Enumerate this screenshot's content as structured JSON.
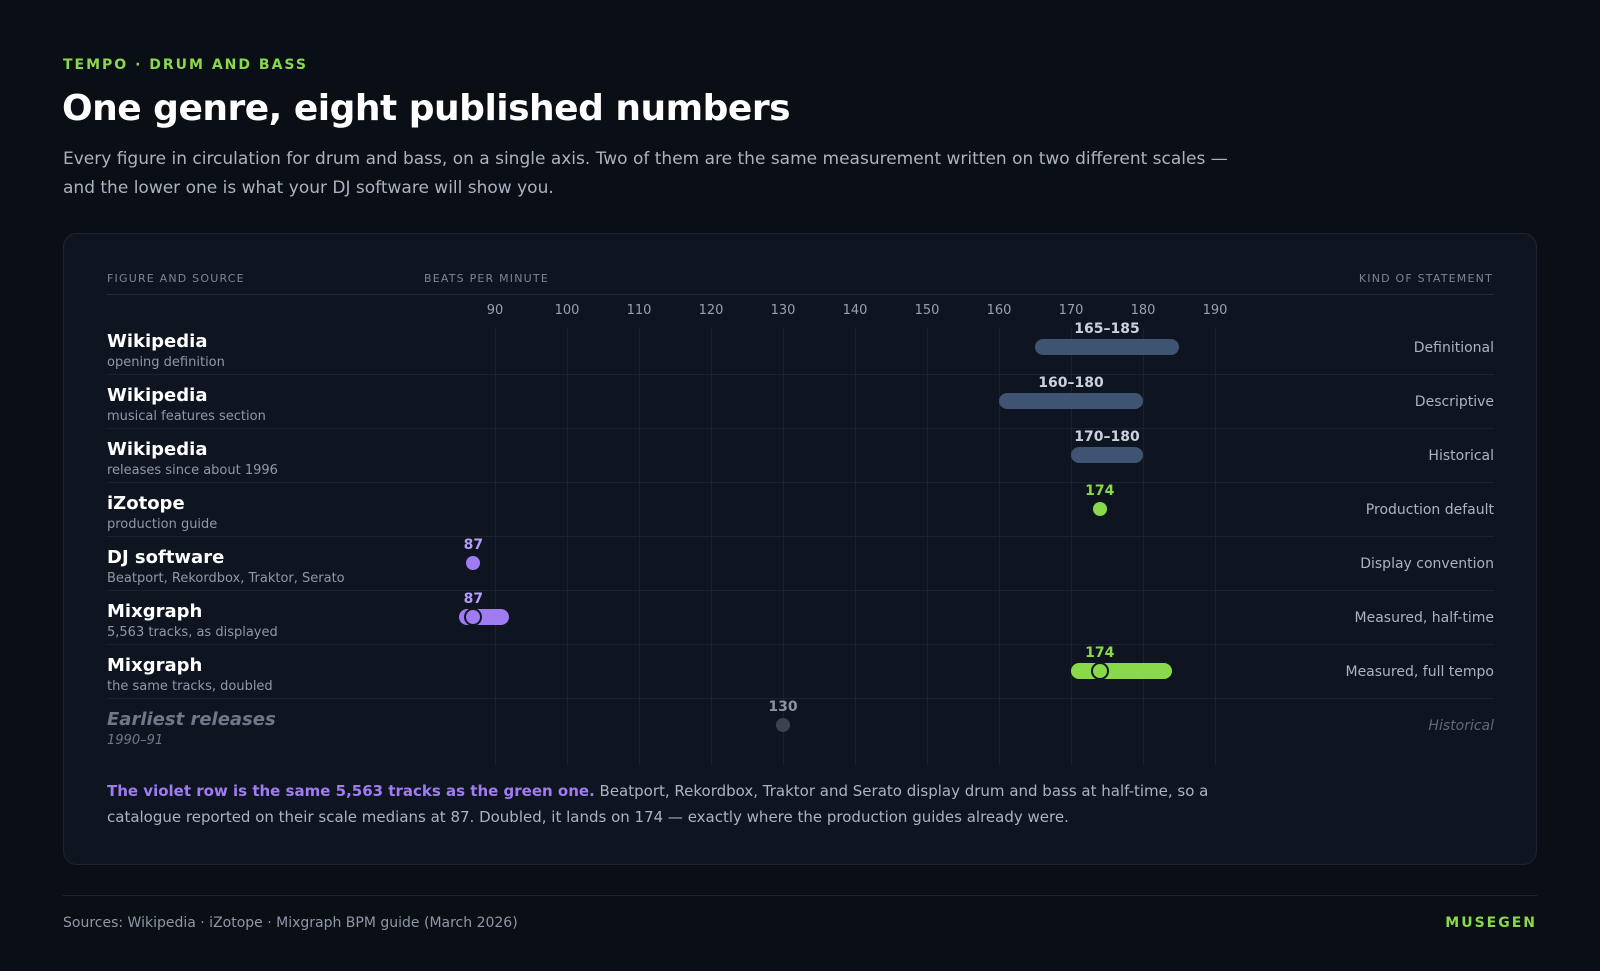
{
  "header": {
    "eyebrow": "TEMPO · DRUM AND BASS",
    "title": "One genre, eight published numbers",
    "subtitle": "Every figure in circulation for drum and bass, on a single axis. Two of them are the same measurement written on two different scales — and the lower one is what your DJ software will show you."
  },
  "columns": {
    "source": "FIGURE AND SOURCE",
    "axis": "BEATS PER MINUTE",
    "kind": "KIND OF STATEMENT"
  },
  "colors": {
    "range": "#3e5472",
    "green": "#8ad94a",
    "violet": "#a07cf3",
    "muted": "#3a4352"
  },
  "chart_data": {
    "type": "scatter",
    "x_unit": "BPM",
    "xlim": [
      85,
      195
    ],
    "ticks": [
      90,
      100,
      110,
      120,
      130,
      140,
      150,
      160,
      170,
      180,
      190
    ],
    "rows": [
      {
        "source": "Wikipedia",
        "detail": "opening definition",
        "kind": "Definitional",
        "label": "165–185",
        "min": 165,
        "max": 185,
        "color": "range",
        "muted": false
      },
      {
        "source": "Wikipedia",
        "detail": "musical features section",
        "kind": "Descriptive",
        "label": "160–180",
        "min": 160,
        "max": 180,
        "color": "range",
        "muted": false
      },
      {
        "source": "Wikipedia",
        "detail": "releases since about 1996",
        "kind": "Historical",
        "label": "170–180",
        "min": 170,
        "max": 180,
        "color": "range",
        "muted": false
      },
      {
        "source": "iZotope",
        "detail": "production guide",
        "kind": "Production default",
        "label": "174",
        "value": 174,
        "color": "green",
        "muted": false
      },
      {
        "source": "DJ software",
        "detail": "Beatport, Rekordbox, Traktor, Serato",
        "kind": "Display convention",
        "label": "87",
        "value": 87,
        "color": "violet",
        "muted": false
      },
      {
        "source": "Mixgraph",
        "detail": "5,563 tracks, as displayed",
        "kind": "Measured, half-time",
        "label": "87",
        "value": 87,
        "min": 85,
        "max": 92,
        "color": "violet",
        "muted": false
      },
      {
        "source": "Mixgraph",
        "detail": "the same tracks, doubled",
        "kind": "Measured, full tempo",
        "label": "174",
        "value": 174,
        "min": 170,
        "max": 184,
        "color": "green",
        "muted": false
      },
      {
        "source": "Earliest releases",
        "detail": "1990–91",
        "kind": "Historical",
        "label": "130",
        "value": 130,
        "color": "muted",
        "muted": true
      }
    ]
  },
  "note": {
    "lead": "The violet row is the same 5,563 tracks as the green one.",
    "body": " Beatport, Rekordbox, Traktor and Serato display drum and bass at half-time, so a catalogue reported on their scale medians at 87. Doubled, it lands on 174 — exactly where the production guides already were."
  },
  "footer": {
    "sources": "Sources: Wikipedia · iZotope · Mixgraph BPM guide (March 2026)",
    "brand": "MUSEGEN"
  }
}
